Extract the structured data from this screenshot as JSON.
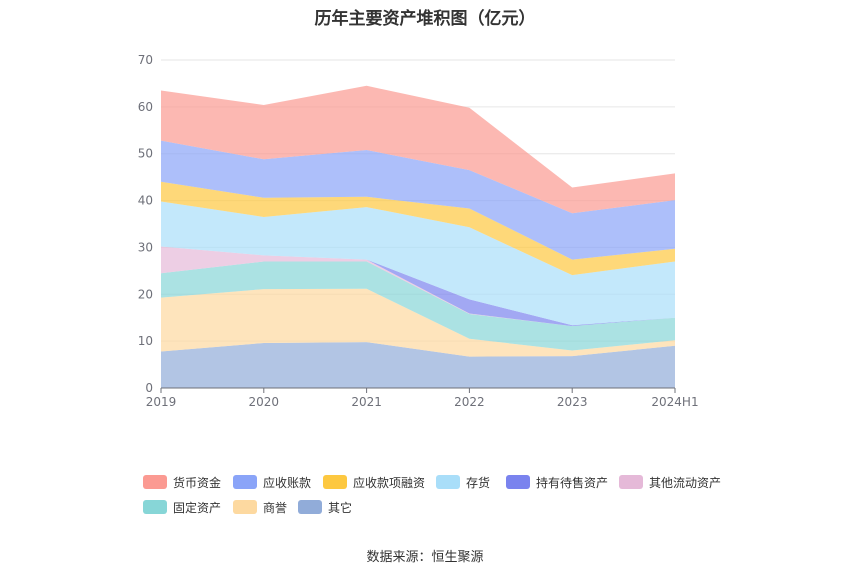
{
  "chart_data": {
    "type": "area",
    "stacked": true,
    "title": "历年主要资产堆积图（亿元）",
    "categories": [
      "2019",
      "2020",
      "2021",
      "2022",
      "2023",
      "2024H1"
    ],
    "ylim": [
      0,
      70
    ],
    "y_ticks": [
      0,
      10,
      20,
      30,
      40,
      50,
      60,
      70
    ],
    "grid": true,
    "legend_position": "bottom",
    "series": [
      {
        "name": "其它",
        "color": "#91acd9",
        "values": [
          7.8,
          9.6,
          9.8,
          6.7,
          6.8,
          9.0
        ]
      },
      {
        "name": "商誉",
        "color": "#fdd9a0",
        "values": [
          11.5,
          11.5,
          11.4,
          3.8,
          1.2,
          1.2
        ]
      },
      {
        "name": "固定资产",
        "color": "#87d6d7",
        "values": [
          5.2,
          5.9,
          5.8,
          5.3,
          5.2,
          4.8
        ]
      },
      {
        "name": "其他流动资产",
        "color": "#e5b9d8",
        "values": [
          5.7,
          1.3,
          0.4,
          0.1,
          0.0,
          0.0
        ]
      },
      {
        "name": "持有待售资产",
        "color": "#7a83ee",
        "values": [
          0.0,
          0.0,
          0.0,
          3.0,
          0.2,
          0.0
        ]
      },
      {
        "name": "存货",
        "color": "#a9def9",
        "values": [
          9.6,
          8.2,
          11.2,
          15.4,
          10.7,
          12.0
        ]
      },
      {
        "name": "应收款项融资",
        "color": "#fdc840",
        "values": [
          4.2,
          4.1,
          2.2,
          4.0,
          3.3,
          2.7
        ]
      },
      {
        "name": "应收账款",
        "color": "#8aa4f8",
        "values": [
          8.8,
          8.2,
          10.0,
          8.2,
          9.9,
          10.4
        ]
      },
      {
        "name": "货币资金",
        "color": "#fb9a92",
        "values": [
          10.7,
          11.6,
          13.7,
          13.3,
          5.5,
          5.7
        ]
      }
    ]
  },
  "legend": {
    "items": [
      {
        "label": "货币资金",
        "color": "#fb9a92"
      },
      {
        "label": "应收账款",
        "color": "#8aa4f8"
      },
      {
        "label": "应收款项融资",
        "color": "#fdc840"
      },
      {
        "label": "存货",
        "color": "#a9def9"
      },
      {
        "label": "持有待售资产",
        "color": "#7a83ee"
      },
      {
        "label": "其他流动资产",
        "color": "#e5b9d8"
      },
      {
        "label": "固定资产",
        "color": "#87d6d7"
      },
      {
        "label": "商誉",
        "color": "#fdd9a0"
      },
      {
        "label": "其它",
        "color": "#91acd9"
      }
    ]
  },
  "source": "数据来源：恒生聚源"
}
